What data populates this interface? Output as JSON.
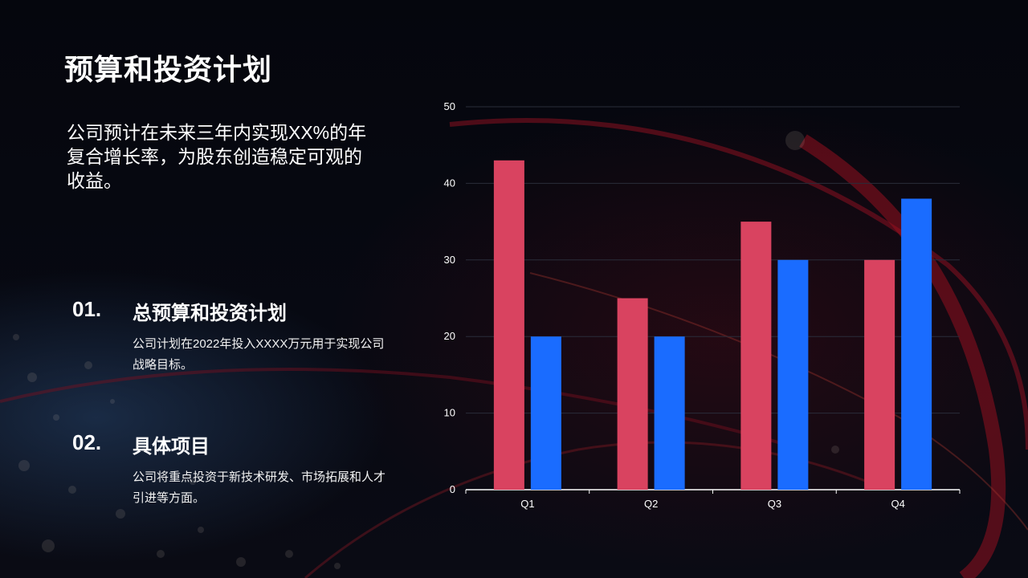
{
  "slide": {
    "title": "预算和投资计划",
    "intro": "公司预计在未来三年内实现XX%的年复合增长率，为股东创造稳定可观的收益。",
    "items": [
      {
        "number": "01.",
        "heading": "总预算和投资计划",
        "description": "公司计划在2022年投入XXXX万元用于实现公司战略目标。"
      },
      {
        "number": "02.",
        "heading": "具体项目",
        "description": "公司将重点投资于新技术研发、市场拓展和人才引进等方面。"
      }
    ]
  },
  "colors": {
    "series_1": "#d94360",
    "series_2": "#1a6cff",
    "gridline": "#2a2d3a",
    "axis": "#ffffff"
  },
  "chart_data": {
    "type": "bar",
    "categories": [
      "Q1",
      "Q2",
      "Q3",
      "Q4"
    ],
    "series": [
      {
        "values": [
          43,
          25,
          35,
          30
        ]
      },
      {
        "values": [
          20,
          20,
          30,
          38
        ]
      }
    ],
    "ylim": [
      0,
      50
    ],
    "yticks": [
      0,
      10,
      20,
      30,
      40,
      50
    ],
    "grid": true,
    "legend": "none"
  }
}
